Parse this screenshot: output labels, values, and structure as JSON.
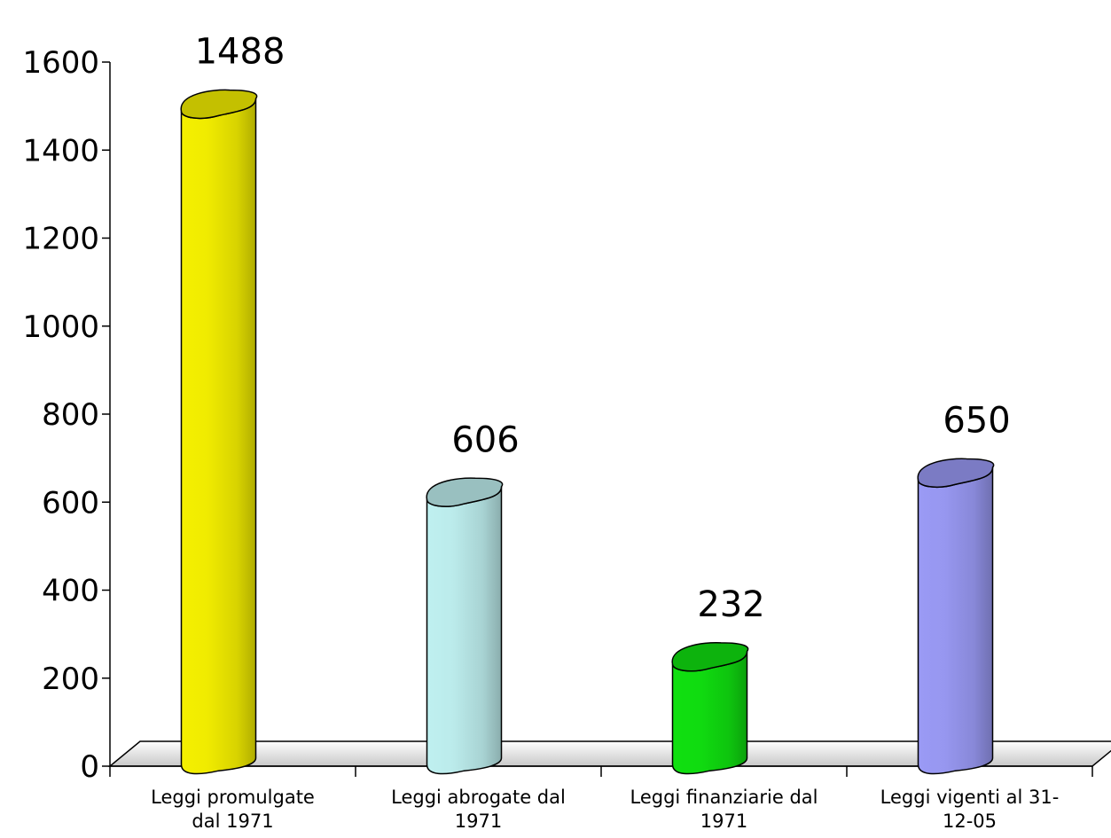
{
  "chart_data": {
    "type": "bar",
    "bar_style": "3d-cylinder",
    "categories": [
      [
        "Leggi promulgate",
        "dal 1971"
      ],
      [
        "Leggi abrogate dal",
        "1971"
      ],
      [
        "Leggi finanziarie dal",
        "1971"
      ],
      [
        "Leggi vigenti al 31-",
        "12-05"
      ]
    ],
    "values": [
      1488,
      606,
      232,
      650
    ],
    "data_labels": [
      "1488",
      "606",
      "232",
      "650"
    ],
    "colors": [
      "#f5f000",
      "#bff0f0",
      "#10e010",
      "#9a9af5"
    ],
    "ylim": [
      0,
      1600
    ],
    "yticks": [
      "0",
      "200",
      "400",
      "600",
      "800",
      "1000",
      "1200",
      "1400",
      "1600"
    ],
    "grid": false,
    "legend": "none"
  }
}
